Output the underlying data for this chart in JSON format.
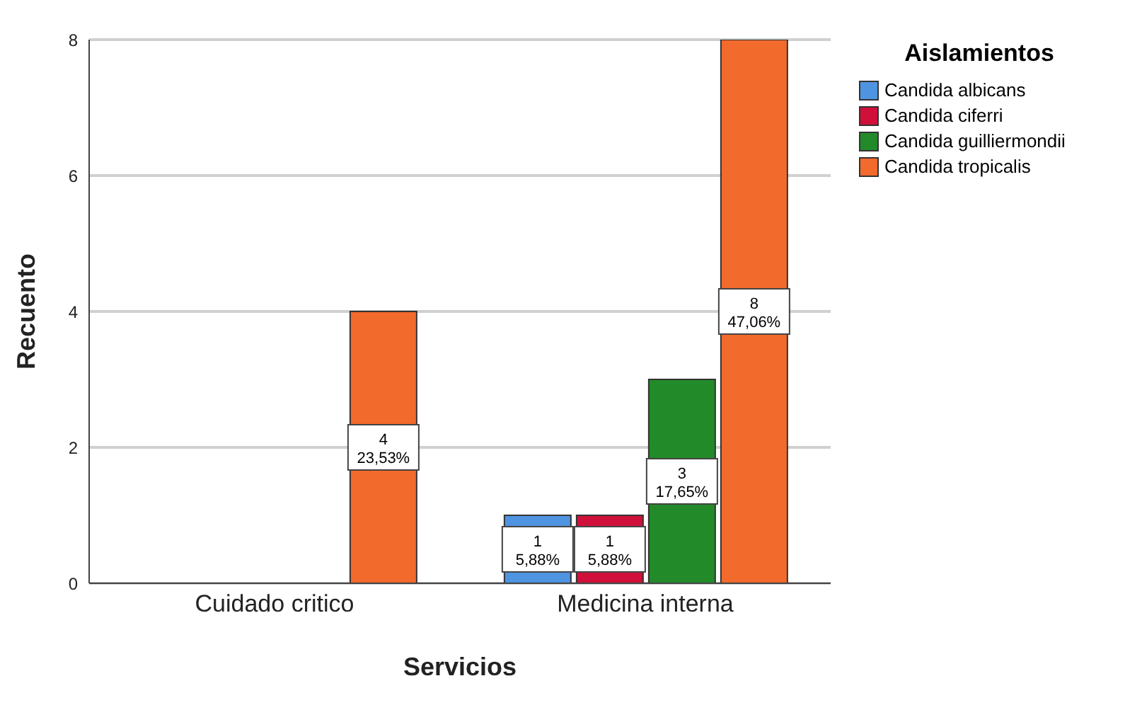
{
  "chart_data": {
    "type": "bar",
    "xlabel": "Servicios",
    "ylabel": "Recuento",
    "legend_title": "Aislamientos",
    "categories": [
      "Cuidado critico",
      "Medicina interna"
    ],
    "series": [
      {
        "name": "Candida albicans",
        "color": "#4f94e0",
        "values": [
          null,
          1
        ],
        "value_labels": [
          null,
          "1\n5,88%"
        ]
      },
      {
        "name": "Candida ciferri",
        "color": "#d0103a",
        "values": [
          null,
          1
        ],
        "value_labels": [
          null,
          "1\n5,88%"
        ]
      },
      {
        "name": "Candida guilliermondii",
        "color": "#238a2a",
        "values": [
          null,
          3
        ],
        "value_labels": [
          null,
          "3\n17,65%"
        ]
      },
      {
        "name": "Candida tropicalis",
        "color": "#f26a2c",
        "values": [
          4,
          8
        ],
        "value_labels": [
          "4\n23,53%",
          "8\n47,06%"
        ]
      }
    ],
    "ylim": [
      0,
      8
    ],
    "yticks": [
      0,
      2,
      4,
      6,
      8
    ],
    "grid": "y",
    "legend": "top right"
  }
}
